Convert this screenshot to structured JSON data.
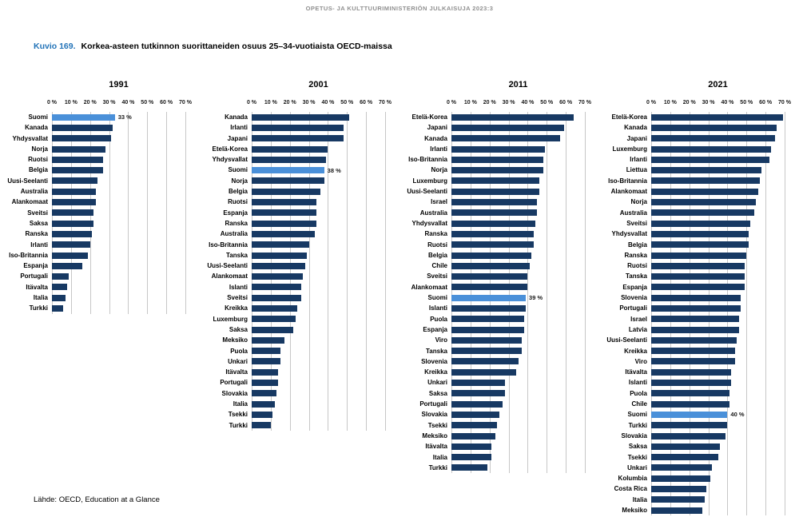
{
  "header": {
    "text": "OPETUS- JA KULTTUURIMINISTERIÖN JULKAISUJA 2023:3"
  },
  "title": {
    "number": "Kuvio 169.",
    "text": "Korkea-asteen tutkinnon suorittaneiden osuus 25–34-vuotiaista OECD-maissa"
  },
  "footer": {
    "source": "Lähde: OECD, Education at a Glance"
  },
  "colors": {
    "bar": "#173963",
    "highlight": "#4a90d9",
    "gridline": "#c7c7c7"
  },
  "axis": {
    "ticks": [
      "0 %",
      "10 %",
      "20 %",
      "30 %",
      "40 %",
      "50 %",
      "60 %",
      "70 %"
    ],
    "max": 70
  },
  "chart_data": [
    {
      "type": "bar",
      "orientation": "horizontal",
      "title": "1991",
      "xlim": [
        0,
        70
      ],
      "highlight_country": "Suomi",
      "highlight_label": "33 %",
      "categories": [
        "Suomi",
        "Kanada",
        "Yhdysvallat",
        "Norja",
        "Ruotsi",
        "Belgia",
        "Uusi-Seelanti",
        "Australia",
        "Alankomaat",
        "Sveitsi",
        "Saksa",
        "Ranska",
        "Irlanti",
        "Iso-Britannia",
        "Espanja",
        "Portugali",
        "Itävalta",
        "Italia",
        "Turkki"
      ],
      "values": [
        33,
        32,
        31,
        28,
        27,
        27,
        24,
        23,
        23,
        22,
        22,
        21,
        20,
        19,
        16,
        9,
        8,
        7,
        6
      ]
    },
    {
      "type": "bar",
      "orientation": "horizontal",
      "title": "2001",
      "xlim": [
        0,
        70
      ],
      "highlight_country": "Suomi",
      "highlight_label": "38 %",
      "categories": [
        "Kanada",
        "Irlanti",
        "Japani",
        "Etelä-Korea",
        "Yhdysvallat",
        "Suomi",
        "Norja",
        "Belgia",
        "Ruotsi",
        "Espanja",
        "Ranska",
        "Australia",
        "Iso-Britannia",
        "Tanska",
        "Uusi-Seelanti",
        "Alankomaat",
        "Islanti",
        "Sveitsi",
        "Kreikka",
        "Luxemburg",
        "Saksa",
        "Meksiko",
        "Puola",
        "Unkari",
        "Itävalta",
        "Portugali",
        "Slovakia",
        "Italia",
        "Tsekki",
        "Turkki"
      ],
      "values": [
        51,
        48,
        48,
        40,
        39,
        38,
        38,
        36,
        34,
        34,
        34,
        33,
        30,
        29,
        28,
        27,
        26,
        26,
        24,
        23,
        22,
        17,
        15,
        15,
        14,
        14,
        13,
        12,
        11,
        10
      ]
    },
    {
      "type": "bar",
      "orientation": "horizontal",
      "title": "2011",
      "xlim": [
        0,
        70
      ],
      "highlight_country": "Suomi",
      "highlight_label": "39 %",
      "categories": [
        "Etelä-Korea",
        "Japani",
        "Kanada",
        "Irlanti",
        "Iso-Britannia",
        "Norja",
        "Luxemburg",
        "Uusi-Seelanti",
        "Israel",
        "Australia",
        "Yhdysvallat",
        "Ranska",
        "Ruotsi",
        "Belgia",
        "Chile",
        "Sveitsi",
        "Alankomaat",
        "Suomi",
        "Islanti",
        "Puola",
        "Espanja",
        "Viro",
        "Tanska",
        "Slovenia",
        "Kreikka",
        "Unkari",
        "Saksa",
        "Portugali",
        "Slovakia",
        "Tsekki",
        "Meksiko",
        "Itävalta",
        "Italia",
        "Turkki"
      ],
      "values": [
        64,
        59,
        57,
        49,
        48,
        48,
        46,
        46,
        45,
        45,
        44,
        43,
        43,
        42,
        41,
        40,
        40,
        39,
        39,
        38,
        38,
        37,
        37,
        35,
        34,
        28,
        28,
        27,
        25,
        24,
        23,
        21,
        21,
        19
      ]
    },
    {
      "type": "bar",
      "orientation": "horizontal",
      "title": "2021",
      "xlim": [
        0,
        70
      ],
      "highlight_country": "Suomi",
      "highlight_label": "40 %",
      "categories": [
        "Etelä-Korea",
        "Kanada",
        "Japani",
        "Luxemburg",
        "Irlanti",
        "Liettua",
        "Iso-Britannia",
        "Alankomaat",
        "Norja",
        "Australia",
        "Sveitsi",
        "Yhdysvallat",
        "Belgia",
        "Ranska",
        "Ruotsi",
        "Tanska",
        "Espanja",
        "Slovenia",
        "Portugali",
        "Israel",
        "Latvia",
        "Uusi-Seelanti",
        "Kreikka",
        "Viro",
        "Itävalta",
        "Islanti",
        "Puola",
        "Chile",
        "Suomi",
        "Turkki",
        "Slovakia",
        "Saksa",
        "Tsekki",
        "Unkari",
        "Kolumbia",
        "Costa Rica",
        "Italia",
        "Meksiko"
      ],
      "values": [
        69,
        66,
        65,
        63,
        62,
        58,
        57,
        56,
        55,
        54,
        52,
        51,
        51,
        50,
        49,
        49,
        49,
        47,
        47,
        46,
        46,
        45,
        44,
        44,
        42,
        42,
        41,
        41,
        40,
        40,
        39,
        36,
        35,
        32,
        31,
        29,
        28,
        27
      ]
    }
  ]
}
